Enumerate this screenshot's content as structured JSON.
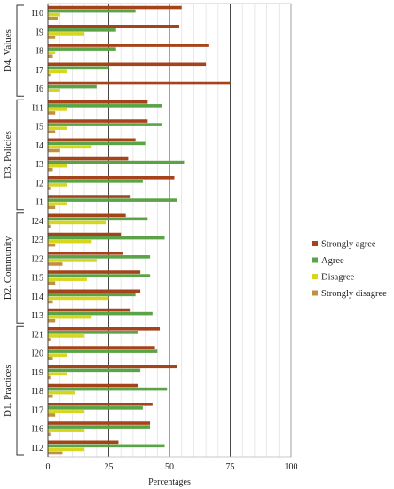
{
  "chart_data": {
    "type": "bar",
    "orientation": "horizontal",
    "xlabel": "Percentages",
    "xlim": [
      0,
      100
    ],
    "xticks": [
      0,
      25,
      50,
      75,
      100
    ],
    "grid": "vertical minor lines every 5, major lines at 25, 50, 75",
    "legend_position": "right",
    "groups": [
      {
        "name": "D4. Values",
        "items": [
          "I10",
          "I9",
          "I8",
          "I7",
          "I6"
        ]
      },
      {
        "name": "D3. Policies",
        "items": [
          "I11",
          "I5",
          "I4",
          "I3",
          "I2",
          "I1"
        ]
      },
      {
        "name": "D2. Community",
        "items": [
          "I24",
          "I23",
          "I22",
          "I15",
          "I14",
          "I13"
        ]
      },
      {
        "name": "D1. Practices",
        "items": [
          "I21",
          "I20",
          "I19",
          "I18",
          "I17",
          "I16",
          "I12"
        ]
      }
    ],
    "categories": [
      "I10",
      "I9",
      "I8",
      "I7",
      "I6",
      "I11",
      "I5",
      "I4",
      "I3",
      "I2",
      "I1",
      "I24",
      "I23",
      "I22",
      "I15",
      "I14",
      "I13",
      "I21",
      "I20",
      "I19",
      "I18",
      "I17",
      "I16",
      "I12"
    ],
    "series": [
      {
        "name": "Strongly agree",
        "color": "#a5441a",
        "values": [
          55,
          54,
          66,
          65,
          75,
          41,
          41,
          36,
          33,
          52,
          34,
          32,
          30,
          31,
          38,
          38,
          34,
          46,
          44,
          53,
          37,
          43,
          42,
          29
        ]
      },
      {
        "name": "Agree",
        "color": "#5aa347",
        "values": [
          36,
          28,
          28,
          25,
          20,
          47,
          47,
          40,
          56,
          39,
          53,
          41,
          48,
          42,
          42,
          36,
          43,
          37,
          45,
          38,
          49,
          39,
          42,
          48
        ]
      },
      {
        "name": "Disagree",
        "color": "#d6d61f",
        "values": [
          5,
          15,
          3,
          8,
          5,
          8,
          8,
          18,
          8,
          8,
          8,
          24,
          18,
          20,
          16,
          25,
          18,
          15,
          8,
          8,
          11,
          15,
          15,
          15
        ]
      },
      {
        "name": "Strongly disagree",
        "color": "#c09040",
        "values": [
          4,
          3,
          2,
          1,
          0,
          3,
          3,
          5,
          2,
          1,
          3,
          1,
          3,
          6,
          3,
          2,
          3,
          1,
          2,
          1,
          2,
          3,
          1,
          6
        ]
      }
    ]
  }
}
